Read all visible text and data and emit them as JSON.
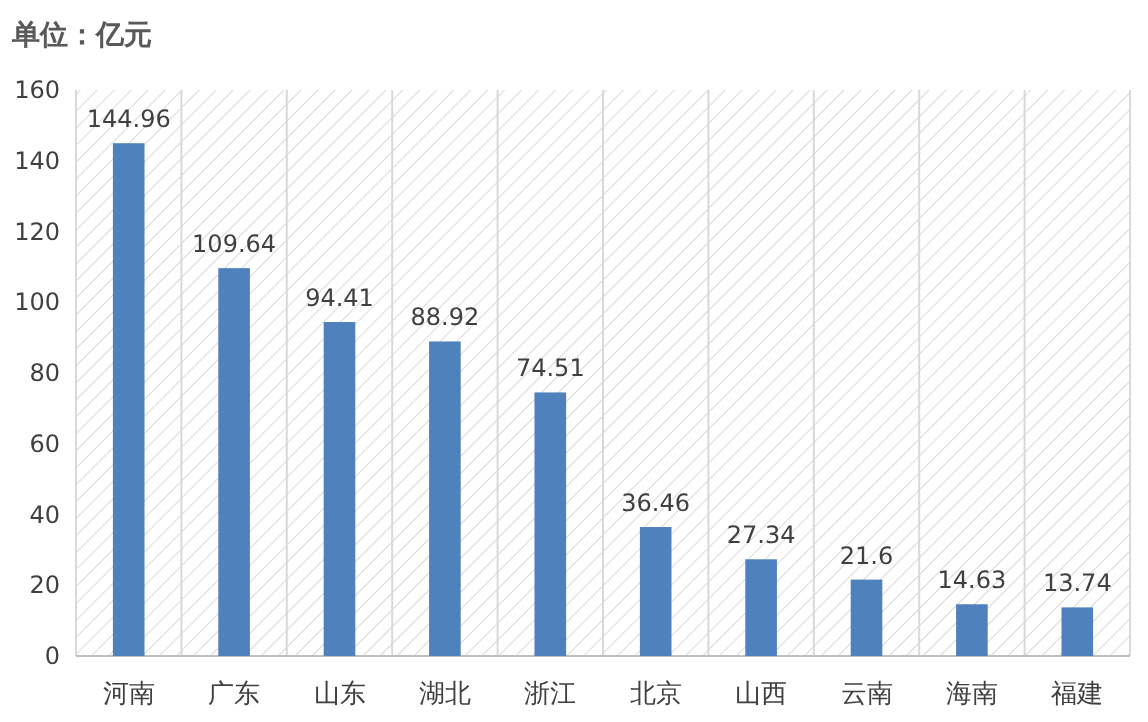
{
  "chart_data": {
    "type": "bar",
    "ylabel": "单位：亿元",
    "categories": [
      "河南",
      "广东",
      "山东",
      "湖北",
      "浙江",
      "北京",
      "山西",
      "云南",
      "海南",
      "福建"
    ],
    "values": [
      144.96,
      109.64,
      94.41,
      88.92,
      74.51,
      36.46,
      27.34,
      21.6,
      14.63,
      13.74
    ],
    "color": "#4f81bd",
    "ylim": [
      0,
      160
    ],
    "yticks": [
      0,
      20,
      40,
      60,
      80,
      100,
      120,
      140,
      160
    ],
    "grid": "x",
    "data_labels": true
  }
}
